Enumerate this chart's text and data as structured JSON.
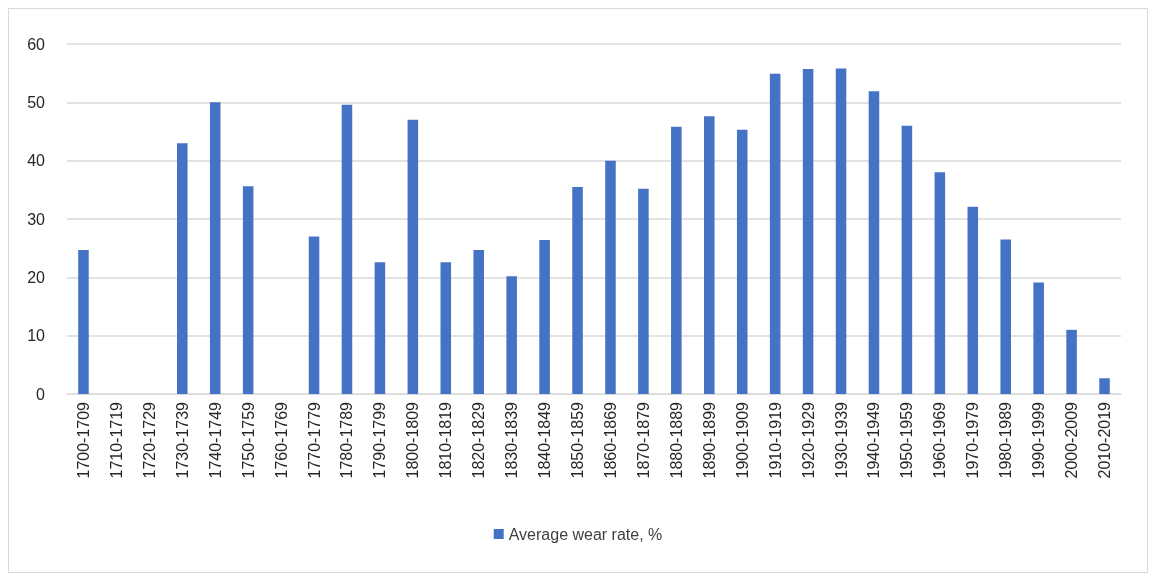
{
  "chart_data": {
    "type": "bar",
    "categories": [
      "1700-1709",
      "1710-1719",
      "1720-1729",
      "1730-1739",
      "1740-1749",
      "1750-1759",
      "1760-1769",
      "1770-1779",
      "1780-1789",
      "1790-1799",
      "1800-1809",
      "1810-1819",
      "1820-1829",
      "1830-1839",
      "1840-1849",
      "1850-1859",
      "1860-1869",
      "1870-1879",
      "1880-1889",
      "1890-1899",
      "1900-1909",
      "1910-1919",
      "1920-1929",
      "1930-1939",
      "1940-1949",
      "1950-1959",
      "1960-1969",
      "1970-1979",
      "1980-1989",
      "1990-1999",
      "2000-2009",
      "2010-2019"
    ],
    "series": [
      {
        "name": "Average wear rate, %",
        "color": "#4472c4",
        "values": [
          24.7,
          null,
          null,
          43,
          50,
          35.6,
          null,
          27,
          49.6,
          22.6,
          47,
          22.6,
          24.7,
          20.2,
          26.4,
          35.5,
          40,
          35.2,
          45.8,
          47.6,
          45.3,
          54.9,
          55.7,
          55.8,
          51.9,
          46,
          38,
          32.1,
          26.5,
          19.1,
          11,
          2.7
        ]
      }
    ],
    "ylim": [
      0,
      60
    ],
    "yticks": [
      0,
      10,
      20,
      30,
      40,
      50,
      60
    ],
    "grid": "y",
    "legend": "bottom"
  }
}
